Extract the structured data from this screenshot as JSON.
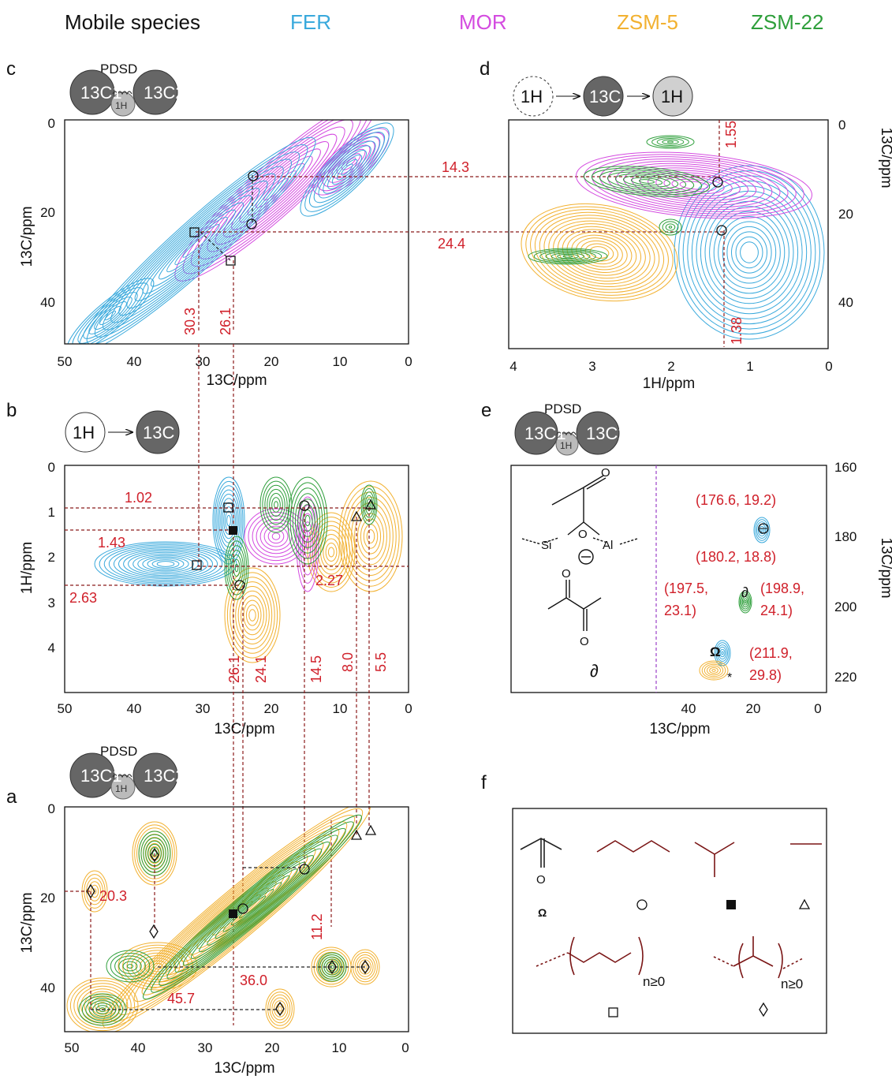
{
  "legend": {
    "title": "Mobile species",
    "items": [
      {
        "label": "FER",
        "color": "#39a9dc"
      },
      {
        "label": "MOR",
        "color": "#d44be0"
      },
      {
        "label": "ZSM-5",
        "color": "#f2b130"
      },
      {
        "label": "ZSM-22",
        "color": "#2e9f3b"
      }
    ]
  },
  "panels": {
    "a": {
      "label": "a",
      "pulse": "PDSD",
      "c1": "13C1",
      "h": "1H",
      "c2": "13C2"
    },
    "b": {
      "label": "b",
      "h": "1H",
      "c": "13C"
    },
    "c": {
      "label": "c",
      "pulse": "PDSD",
      "c1": "13C1",
      "h": "1H",
      "c2": "13C2"
    },
    "d": {
      "label": "d",
      "h1": "1H",
      "c": "13C",
      "h2": "1H"
    },
    "e": {
      "label": "e",
      "pulse": "PDSD",
      "c1": "13C1",
      "h": "1H",
      "c2": "13C2"
    },
    "f": {
      "label": "f"
    }
  },
  "axes": {
    "c13_ppm": "13C/ppm",
    "h1_ppm": "1H/ppm",
    "c_x_ticks": [
      "50",
      "40",
      "30",
      "20",
      "10",
      "0"
    ],
    "c_y_ticks": [
      "0",
      "20",
      "40"
    ],
    "b_y_ticks": [
      "0",
      "1",
      "2",
      "3",
      "4"
    ],
    "d_x_ticks": [
      "4",
      "3",
      "2",
      "1",
      "0"
    ],
    "d_y_ticks": [
      "0",
      "20",
      "40"
    ],
    "e_x_ticks": [
      "40",
      "20",
      "0"
    ],
    "e_y_ticks": [
      "160",
      "180",
      "200",
      "220"
    ]
  },
  "annotations": {
    "c": [
      "30.3",
      "26.1"
    ],
    "cd": [
      "14.3",
      "24.4"
    ],
    "d": [
      "1.55",
      "1.38"
    ],
    "b_h": [
      "1.02",
      "1.43",
      "2.63",
      "2.27"
    ],
    "b_c": [
      "26.1",
      "24.1",
      "14.5",
      "8.0",
      "5.5"
    ],
    "a": [
      "20.3",
      "11.2",
      "36.0",
      "45.7"
    ],
    "e": [
      "(176.6, 19.2)",
      "(180.2, 18.8)",
      "(197.5,",
      "23.1)",
      "(198.9,",
      "24.1)",
      "(211.9,",
      "29.8)"
    ]
  },
  "structures": {
    "si": "Si",
    "o": "O",
    "al": "Al",
    "o2": "O",
    "o3": "O",
    "o4": "O",
    "theta": "Θ",
    "partial": "∂",
    "n1": "n≥0",
    "n2": "n≥0",
    "omega": "Ω",
    "f_o": "O"
  }
}
